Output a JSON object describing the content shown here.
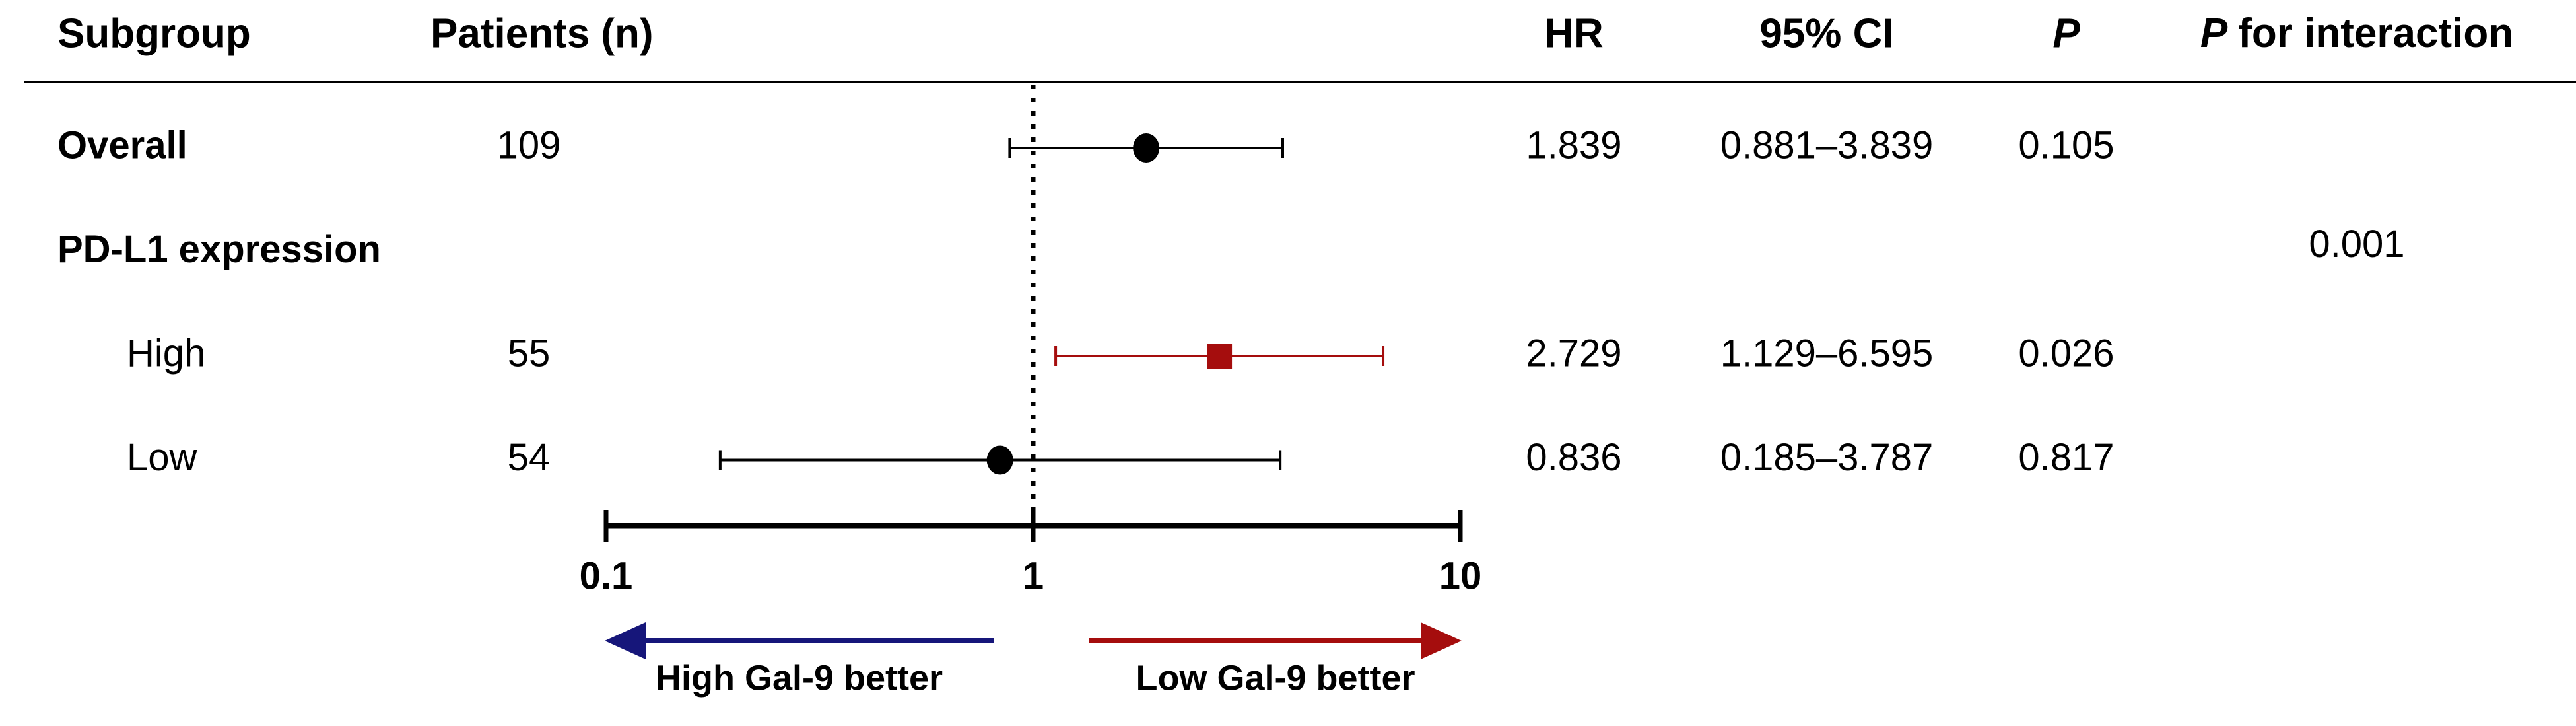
{
  "chart_data": {
    "type": "forest",
    "headers": {
      "subgroup": "Subgroup",
      "patients": "Patients (n)",
      "hr": "HR",
      "ci": "95% CI",
      "p": "P",
      "p_interaction": [
        "P",
        "for interaction"
      ]
    },
    "rows": [
      {
        "label": "Overall",
        "bold": true,
        "level": 0,
        "patients": 109,
        "hr": 1.839,
        "ci_low": 0.881,
        "ci_high": 3.839,
        "ci_label": "0.881–3.839",
        "p": 0.105,
        "marker": "circle",
        "color": "#000000"
      },
      {
        "label": "PD-L1 expression",
        "bold": true,
        "level": 0,
        "p_interaction": 0.001
      },
      {
        "label": "High",
        "bold": false,
        "level": 1,
        "patients": 55,
        "hr": 2.729,
        "ci_low": 1.129,
        "ci_high": 6.595,
        "ci_label": "1.129–6.595",
        "p": 0.026,
        "marker": "square",
        "color": "#a50d0d"
      },
      {
        "label": "Low",
        "bold": false,
        "level": 1,
        "patients": 54,
        "hr": 0.836,
        "ci_low": 0.185,
        "ci_high": 3.787,
        "ci_label": "0.185–3.787",
        "p": 0.817,
        "marker": "circle",
        "color": "#000000"
      }
    ],
    "xscale": "log",
    "xlim": [
      0.1,
      10
    ],
    "xticks": [
      0.1,
      1,
      10
    ],
    "reference_line": 1,
    "arrows": [
      {
        "label": "High Gal-9 better",
        "direction": "left",
        "color": "#16167a"
      },
      {
        "label": "Low Gal-9 better",
        "direction": "right",
        "color": "#a50d0d"
      }
    ]
  }
}
